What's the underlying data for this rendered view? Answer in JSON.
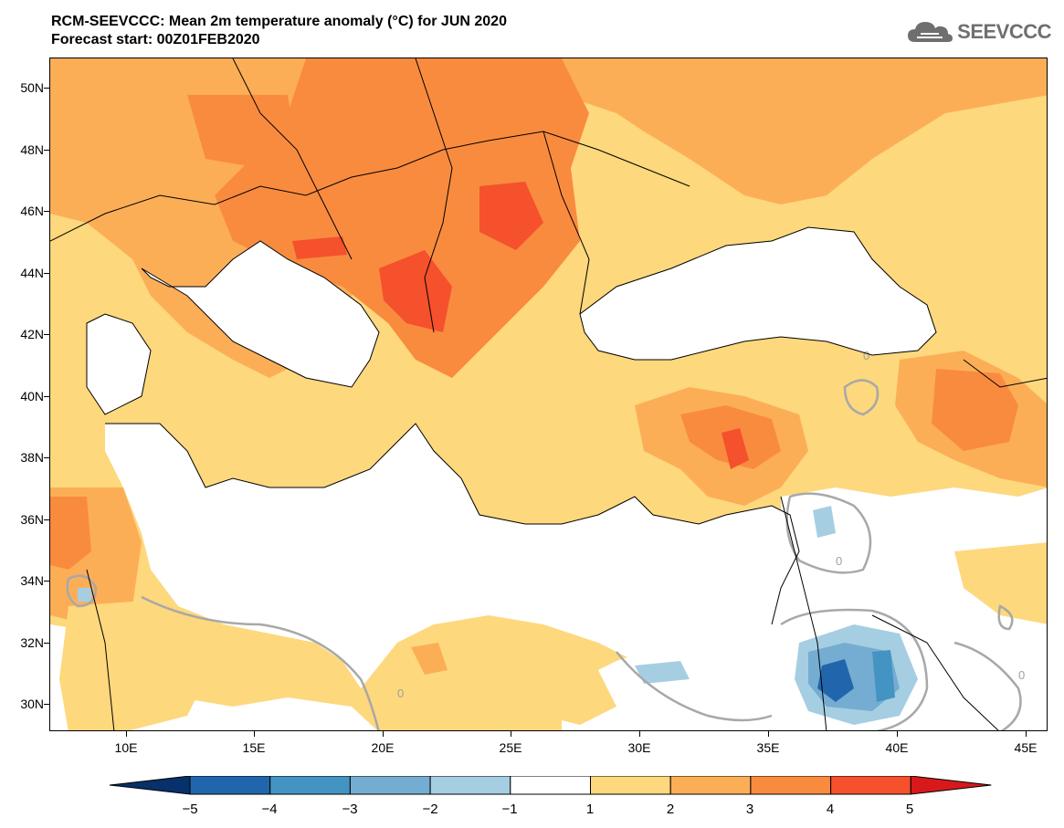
{
  "title": {
    "line1": "RCM-SEEVCCC: Mean 2m temperature anomaly (°C) for JUN 2020",
    "line2": "Forecast start: 00Z01FEB2020"
  },
  "logo": {
    "text": "SEEVCCC",
    "icon": "cloud-icon"
  },
  "axes": {
    "lat_labels": [
      "50N",
      "48N",
      "46N",
      "44N",
      "42N",
      "40N",
      "38N",
      "36N",
      "34N",
      "32N",
      "30N"
    ],
    "lon_labels": [
      "10E",
      "15E",
      "20E",
      "25E",
      "30E",
      "35E",
      "40E",
      "45E"
    ]
  },
  "colorbar": {
    "labels": [
      "−5",
      "−4",
      "−3",
      "−2",
      "−1",
      "1",
      "2",
      "3",
      "4",
      "5"
    ],
    "colors": [
      "#08306b",
      "#2166ac",
      "#4393c3",
      "#74add1",
      "#a6cee3",
      "#ffffff",
      "#fdd87d",
      "#fcae57",
      "#f98b3f",
      "#f4512c",
      "#d7191c"
    ]
  },
  "contour_labels": [
    "0",
    "0",
    "0",
    "0"
  ]
}
